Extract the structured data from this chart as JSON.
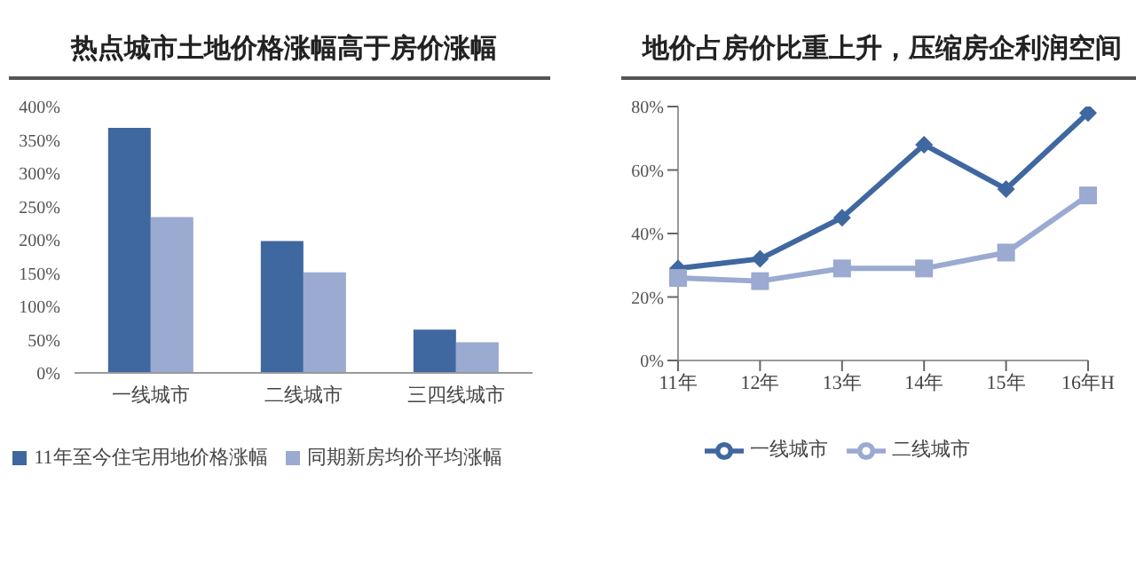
{
  "chart_data": [
    {
      "type": "bar",
      "title": "热点城市土地价格涨幅高于房价涨幅",
      "categories": [
        "一线城市",
        "二线城市",
        "三四线城市"
      ],
      "series": [
        {
          "name": "11年至今住宅用地价格涨幅",
          "color": "#3f67a0",
          "values": [
            368,
            198,
            65
          ]
        },
        {
          "name": "同期新房均价平均涨幅",
          "color": "#9aaad0",
          "values": [
            234,
            151,
            46
          ]
        }
      ],
      "ylim": [
        0,
        400
      ],
      "yticks": [
        {
          "value": 0,
          "label": "0%"
        },
        {
          "value": 50,
          "label": "50%"
        },
        {
          "value": 100,
          "label": "100%"
        },
        {
          "value": 150,
          "label": "150%"
        },
        {
          "value": 200,
          "label": "200%"
        },
        {
          "value": 250,
          "label": "250%"
        },
        {
          "value": 300,
          "label": "300%"
        },
        {
          "value": 350,
          "label": "350%"
        },
        {
          "value": 400,
          "label": "400%"
        }
      ],
      "grid": false,
      "legend": "bottom"
    },
    {
      "type": "line",
      "title": "地价占房价比重上升，压缩房企利润空间",
      "categories": [
        "11年",
        "12年",
        "13年",
        "14年",
        "15年",
        "16年H"
      ],
      "series": [
        {
          "name": "一线城市",
          "color": "#3f67a0",
          "values": [
            29,
            32,
            45,
            68,
            54,
            78
          ],
          "marker": "diamond"
        },
        {
          "name": "二线城市",
          "color": "#9aaad0",
          "values": [
            26,
            25,
            29,
            29,
            34,
            52
          ],
          "marker": "square"
        }
      ],
      "ylim": [
        0,
        80
      ],
      "yticks": [
        {
          "value": 0,
          "label": "0%"
        },
        {
          "value": 20,
          "label": "20%"
        },
        {
          "value": 40,
          "label": "40%"
        },
        {
          "value": 60,
          "label": "60%"
        },
        {
          "value": 80,
          "label": "80%"
        }
      ],
      "grid": false,
      "legend": "bottom"
    }
  ]
}
